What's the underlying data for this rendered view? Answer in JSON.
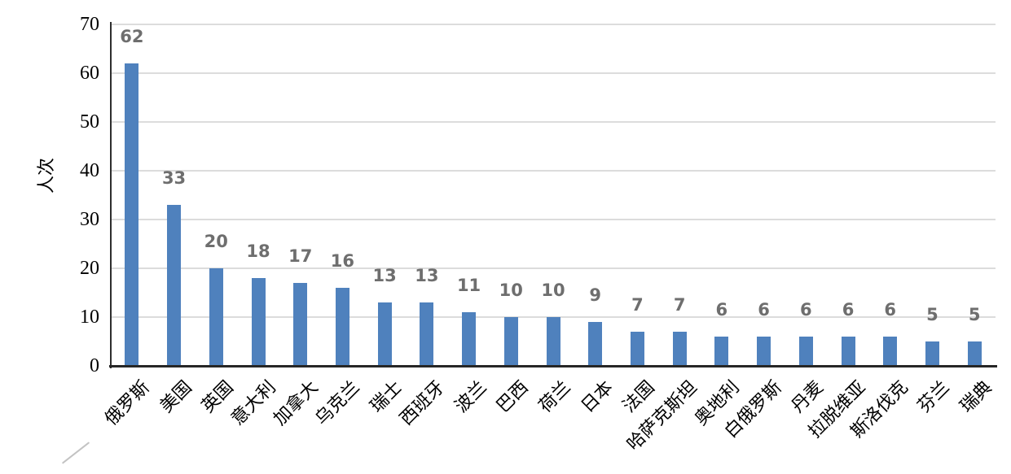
{
  "chart_data": {
    "type": "bar",
    "title": "",
    "xlabel": "",
    "ylabel": "人次",
    "ylim": [
      0,
      70
    ],
    "yticks": [
      0,
      10,
      20,
      30,
      40,
      50,
      60,
      70
    ],
    "grid": true,
    "legend": "none",
    "value_labels_shown": true,
    "categories": [
      "俄罗斯",
      "美国",
      "英国",
      "意大利",
      "加拿大",
      "乌克兰",
      "瑞士",
      "西班牙",
      "波兰",
      "巴西",
      "荷兰",
      "日本",
      "法国",
      "哈萨克斯坦",
      "奥地利",
      "白俄罗斯",
      "丹麦",
      "拉脱维亚",
      "斯洛伐克",
      "芬兰",
      "瑞典"
    ],
    "values": [
      62,
      33,
      20,
      18,
      17,
      16,
      13,
      13,
      11,
      10,
      10,
      9,
      7,
      7,
      6,
      6,
      6,
      6,
      6,
      5,
      5
    ],
    "colors": {
      "bar": "#4f81bd",
      "value_label": "#6e6e6e",
      "gridline": "#dcdcdc",
      "axis": "#262626",
      "text": "#000000"
    }
  }
}
